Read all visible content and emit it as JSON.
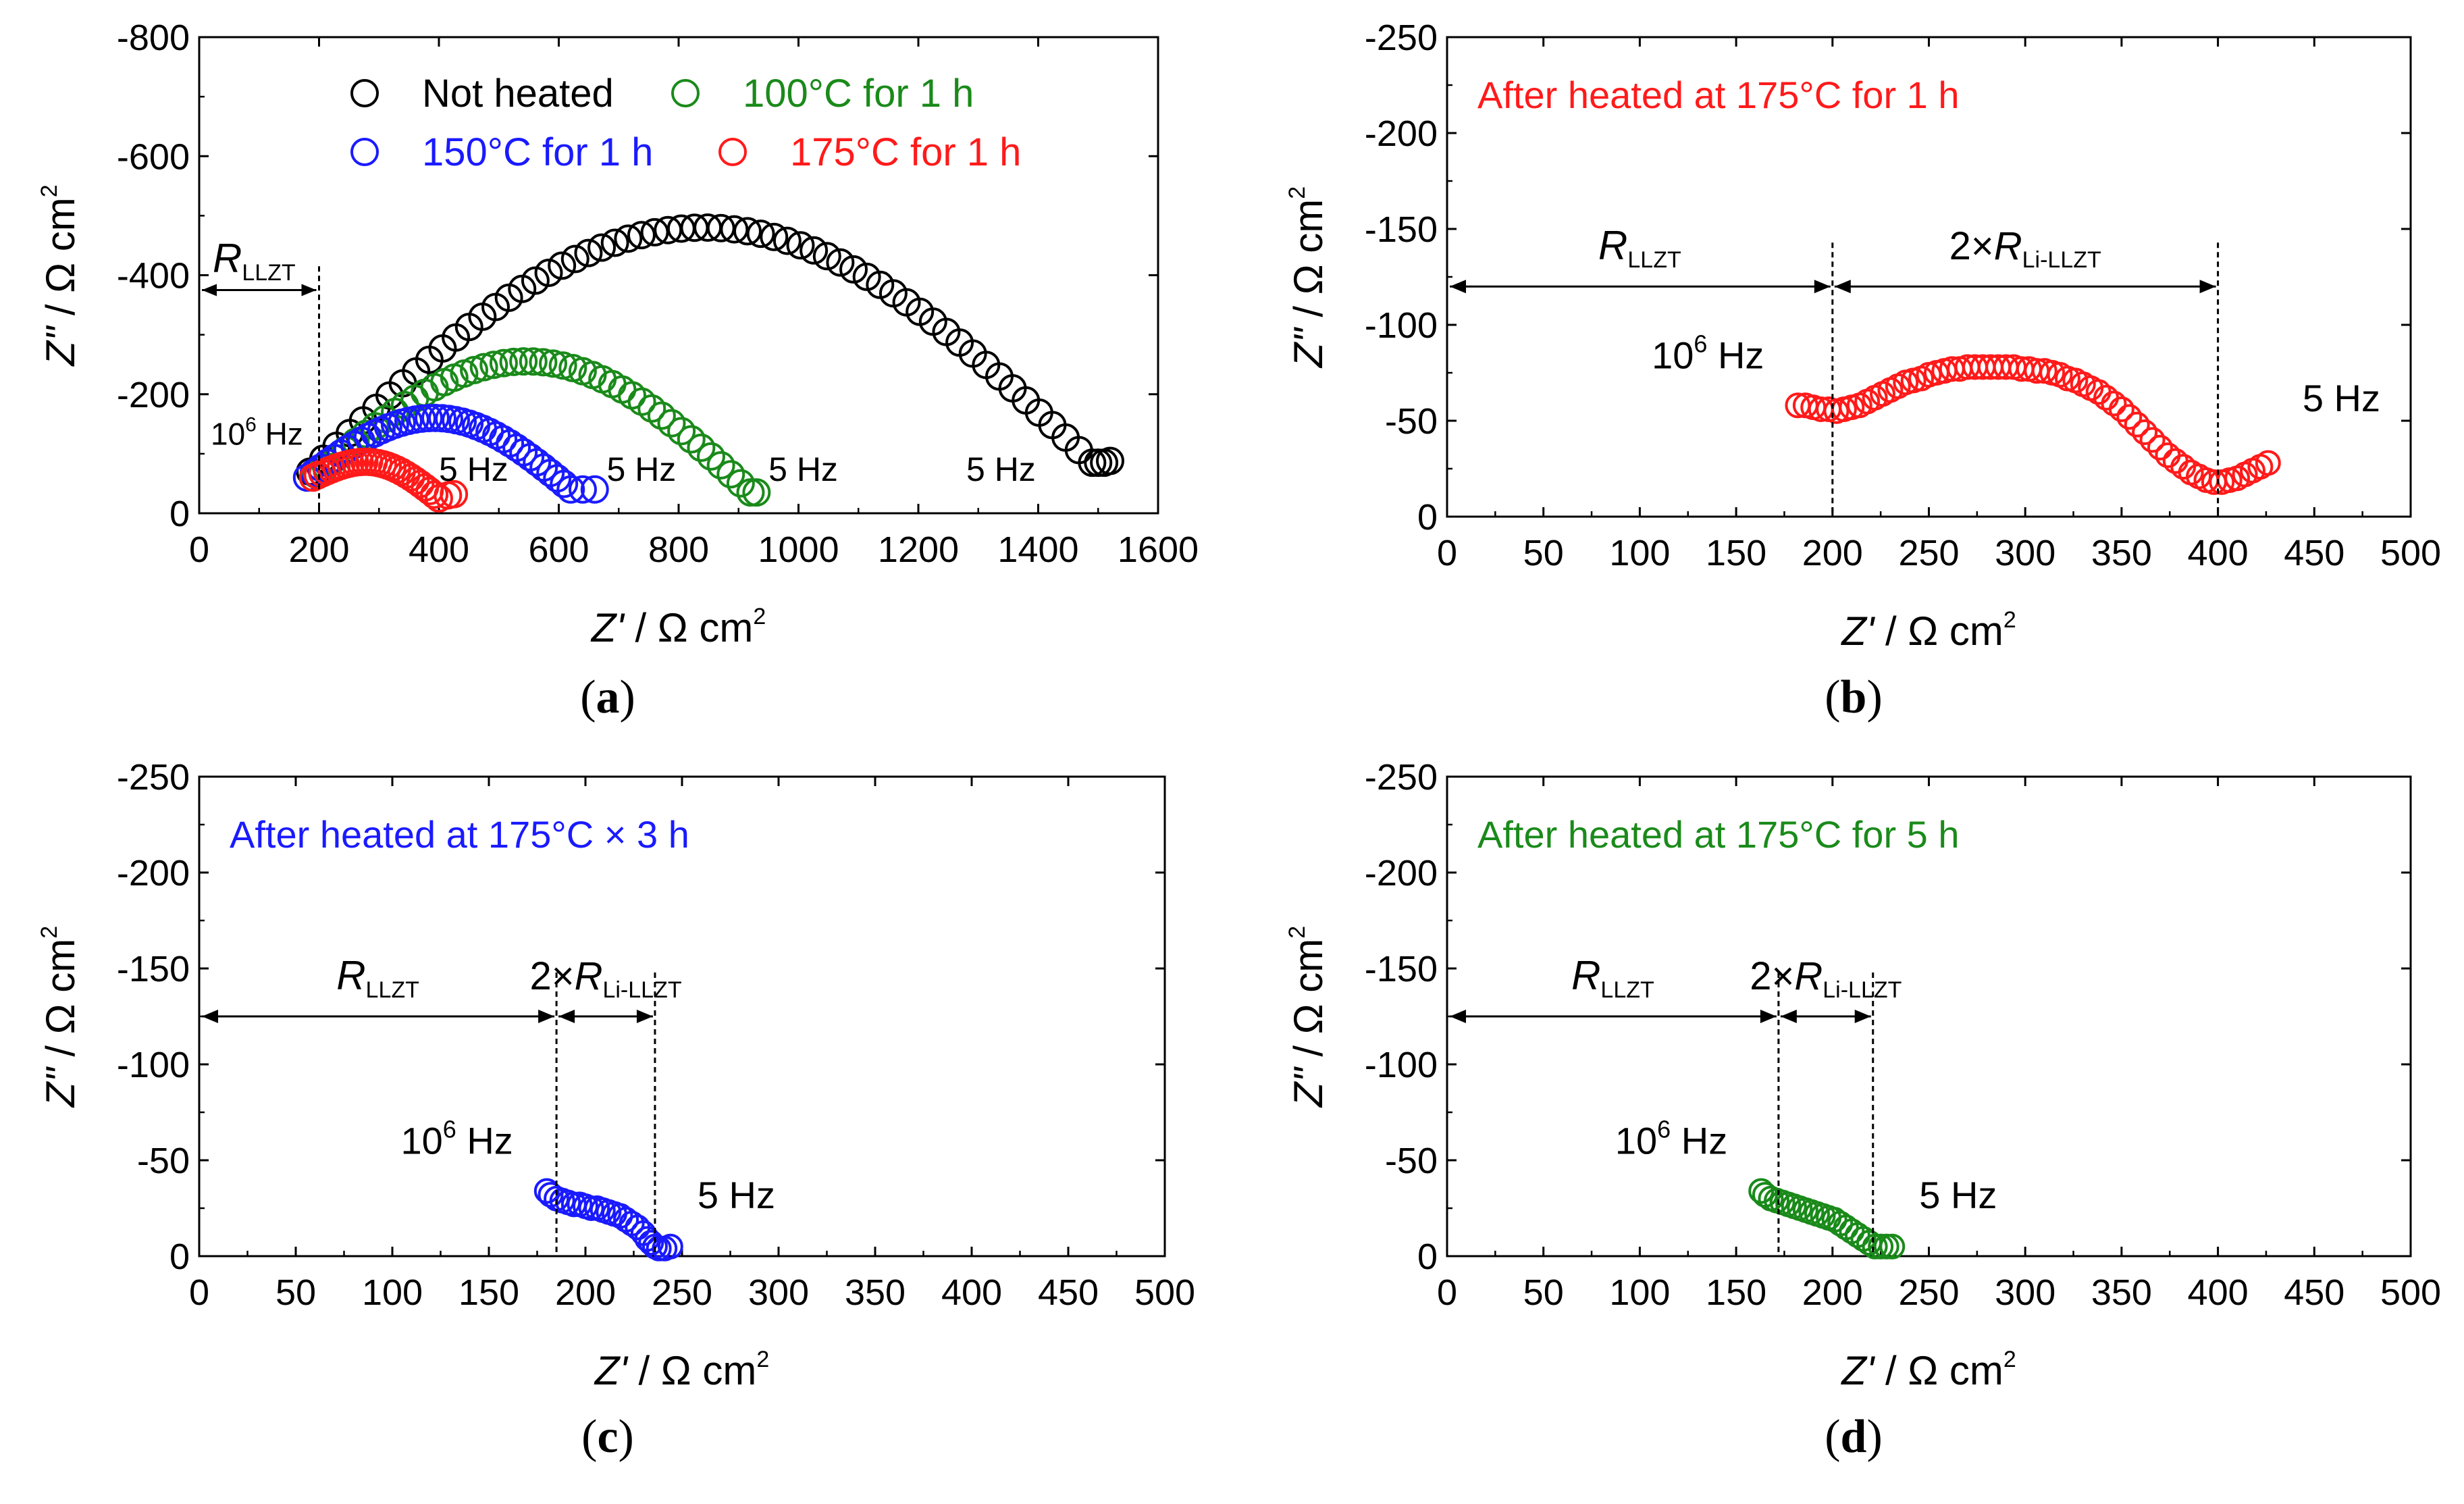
{
  "chart_data": [
    {
      "id": "a",
      "type": "scatter",
      "caption": "a",
      "xlabel_main": "Z'",
      "xlabel_unit": " / Ω cm",
      "xlabel_exp": "2",
      "ylabel_main": "Z\"",
      "ylabel_unit": " / Ω cm",
      "ylabel_exp": "2",
      "xlim": [
        0,
        1600
      ],
      "ylim": [
        0,
        -800
      ],
      "xticks": [
        "0",
        "200",
        "400",
        "600",
        "800",
        "1000",
        "1200",
        "1400",
        "1600"
      ],
      "yticks": [
        "0",
        "-200",
        "-400",
        "-600",
        "-800"
      ],
      "legend": {
        "placement": "top",
        "entries": [
          {
            "label": "Not heated",
            "color": "#000000",
            "text_color": "#000000"
          },
          {
            "label": "100°C for 1 h",
            "color": "#1a8a1a",
            "text_color": "#1a8a1a"
          },
          {
            "label": "150°C for 1 h",
            "color": "#1a1aff",
            "text_color": "#1a1aff"
          },
          {
            "label": "175°C for 1 h",
            "color": "#ff1a1a",
            "text_color": "#ff1a1a"
          }
        ]
      },
      "series": [
        {
          "name": "Not heated",
          "color": "#000000",
          "shape": "arc",
          "start": [
            185,
            -70
          ],
          "end": [
            1490,
            -85
          ],
          "peak": -480,
          "n": 60,
          "tail": [
            [
              1500,
              -85
            ],
            [
              1510,
              -85
            ],
            [
              1520,
              -88
            ]
          ]
        },
        {
          "name": "100°C for 1 h",
          "color": "#1a8a1a",
          "shape": "arc",
          "start": [
            195,
            -65
          ],
          "end": [
            920,
            -35
          ],
          "peak": -255,
          "n": 45,
          "tail": [
            [
              930,
              -35
            ]
          ]
        },
        {
          "name": "150°C for 1 h",
          "color": "#1a1aff",
          "shape": "arc",
          "start": [
            180,
            -60
          ],
          "end": [
            620,
            -40
          ],
          "peak": -160,
          "n": 40,
          "tail": [
            [
              640,
              -40
            ],
            [
              660,
              -40
            ]
          ]
        },
        {
          "name": "175°C for 1 h",
          "color": "#ff1a1a",
          "shape": "arc",
          "start": [
            190,
            -60
          ],
          "end": [
            400,
            -25
          ],
          "peak": -85,
          "n": 28,
          "tail": [
            [
              415,
              -30
            ],
            [
              425,
              -32
            ]
          ]
        }
      ],
      "annotations": {
        "r_label": "R",
        "r_sub": "LLZT",
        "start_freq_base": "10",
        "start_freq_exp": "6",
        "start_freq_unit": " Hz",
        "end_freq": "5 Hz",
        "end_freq_labels": [
          [
            400,
            -75
          ],
          [
            680,
            -75
          ],
          [
            950,
            -75
          ],
          [
            1280,
            -75
          ]
        ]
      }
    },
    {
      "id": "b",
      "type": "scatter",
      "caption": "b",
      "title": "After heated at 175°C for 1 h",
      "title_color": "#ff1a1a",
      "xlabel_main": "Z'",
      "xlabel_unit": " / Ω cm",
      "xlabel_exp": "2",
      "ylabel_main": "Z\"",
      "ylabel_unit": " / Ω cm",
      "ylabel_exp": "2",
      "xlim": [
        0,
        500
      ],
      "ylim": [
        0,
        -250
      ],
      "xticks": [
        "0",
        "50",
        "100",
        "150",
        "200",
        "250",
        "300",
        "350",
        "400",
        "450",
        "500"
      ],
      "yticks": [
        "0",
        "-50",
        "-100",
        "-150",
        "-200",
        "-250"
      ],
      "series": [
        {
          "name": "175°C for 1 h",
          "color": "#ff1a1a",
          "shape": "nyquist",
          "x0": 182,
          "x1": 428,
          "points": [
            [
              182,
              -58
            ],
            [
              186,
              -58
            ],
            [
              190,
              -57
            ],
            [
              194,
              -56
            ],
            [
              198,
              -56
            ],
            [
              202,
              -55
            ],
            [
              206,
              -56
            ],
            [
              210,
              -57
            ],
            [
              214,
              -58
            ],
            [
              218,
              -60
            ],
            [
              222,
              -62
            ],
            [
              226,
              -64
            ],
            [
              230,
              -66
            ],
            [
              234,
              -68
            ],
            [
              238,
              -70
            ],
            [
              242,
              -71
            ],
            [
              246,
              -72
            ],
            [
              250,
              -74
            ],
            [
              254,
              -75
            ],
            [
              258,
              -76
            ],
            [
              262,
              -77
            ],
            [
              266,
              -77
            ],
            [
              270,
              -78
            ],
            [
              274,
              -78
            ],
            [
              278,
              -78
            ],
            [
              282,
              -78
            ],
            [
              286,
              -78
            ],
            [
              290,
              -78
            ],
            [
              294,
              -78
            ],
            [
              298,
              -77
            ],
            [
              302,
              -77
            ],
            [
              306,
              -76
            ],
            [
              310,
              -76
            ],
            [
              314,
              -75
            ],
            [
              318,
              -74
            ],
            [
              322,
              -72
            ],
            [
              326,
              -71
            ],
            [
              330,
              -69
            ],
            [
              334,
              -67
            ],
            [
              338,
              -65
            ],
            [
              342,
              -62
            ],
            [
              346,
              -59
            ],
            [
              350,
              -56
            ],
            [
              354,
              -52
            ],
            [
              358,
              -48
            ],
            [
              362,
              -44
            ],
            [
              366,
              -40
            ],
            [
              370,
              -36
            ],
            [
              374,
              -32
            ],
            [
              378,
              -29
            ],
            [
              382,
              -26
            ],
            [
              386,
              -23
            ],
            [
              390,
              -21
            ],
            [
              394,
              -19
            ],
            [
              398,
              -18
            ],
            [
              402,
              -18
            ],
            [
              406,
              -19
            ],
            [
              410,
              -20
            ],
            [
              414,
              -22
            ],
            [
              418,
              -24
            ],
            [
              422,
              -26
            ],
            [
              426,
              -28
            ]
          ]
        }
      ],
      "annotations": {
        "r_label": "R",
        "r_sub": "LLZT",
        "r2_label_pre": "2×",
        "r2_label": "R",
        "r2_sub": "Li-LLZT",
        "dashed_x": [
          200,
          400
        ],
        "arrow_y": -120,
        "start_freq_base": "10",
        "start_freq_exp": "6",
        "start_freq_unit": " Hz",
        "end_freq": "5 Hz"
      }
    },
    {
      "id": "c",
      "type": "scatter",
      "caption": "c",
      "title": "After heated at 175°C × 3 h",
      "title_color": "#1a1aff",
      "xlabel_main": "Z'",
      "xlabel_unit": " / Ω cm",
      "xlabel_exp": "2",
      "ylabel_main": "Z\"",
      "ylabel_unit": " / Ω cm",
      "ylabel_exp": "2",
      "xlim": [
        0,
        500
      ],
      "ylim": [
        0,
        -250
      ],
      "xticks": [
        "0",
        "50",
        "100",
        "150",
        "200",
        "250",
        "300",
        "350",
        "400",
        "450",
        "500"
      ],
      "yticks": [
        "0",
        "-50",
        "-100",
        "-150",
        "-200",
        "-250"
      ],
      "series": [
        {
          "name": "175°C × 3 h",
          "color": "#1a1aff",
          "shape": "nyquist",
          "points": [
            [
              180,
              -34
            ],
            [
              182,
              -32
            ],
            [
              185,
              -30
            ],
            [
              188,
              -29
            ],
            [
              191,
              -28
            ],
            [
              194,
              -27
            ],
            [
              197,
              -27
            ],
            [
              200,
              -26
            ],
            [
              203,
              -25
            ],
            [
              206,
              -25
            ],
            [
              209,
              -24
            ],
            [
              212,
              -23
            ],
            [
              215,
              -22
            ],
            [
              218,
              -21
            ],
            [
              221,
              -19
            ],
            [
              224,
              -17
            ],
            [
              227,
              -15
            ],
            [
              230,
              -12
            ],
            [
              232,
              -9
            ],
            [
              234,
              -7
            ],
            [
              236,
              -5
            ],
            [
              238,
              -4
            ],
            [
              241,
              -4
            ],
            [
              244,
              -5
            ]
          ]
        }
      ],
      "annotations": {
        "r_label": "R",
        "r_sub": "LLZT",
        "r2_label_pre": "2×",
        "r2_label": "R",
        "r2_sub": "Li-LLZT",
        "dashed_x": [
          185,
          236
        ],
        "arrow_y": -125,
        "start_freq_base": "10",
        "start_freq_exp": "6",
        "start_freq_unit": " Hz",
        "end_freq": "5 Hz"
      }
    },
    {
      "id": "d",
      "type": "scatter",
      "caption": "d",
      "title": "After heated at 175°C for 5 h",
      "title_color": "#1a8a1a",
      "xlabel_main": "Z'",
      "xlabel_unit": " / Ω cm",
      "xlabel_exp": "2",
      "ylabel_main": "Z\"",
      "ylabel_unit": " / Ω cm",
      "ylabel_exp": "2",
      "xlim": [
        0,
        500
      ],
      "ylim": [
        0,
        -250
      ],
      "xticks": [
        "0",
        "50",
        "100",
        "150",
        "200",
        "250",
        "300",
        "350",
        "400",
        "450",
        "500"
      ],
      "yticks": [
        "0",
        "-50",
        "-100",
        "-150",
        "-200",
        "-250"
      ],
      "series": [
        {
          "name": "175°C for 5 h",
          "color": "#1a8a1a",
          "shape": "nyquist",
          "points": [
            [
              163,
              -34
            ],
            [
              165,
              -32
            ],
            [
              168,
              -30
            ],
            [
              171,
              -29
            ],
            [
              174,
              -28
            ],
            [
              177,
              -27
            ],
            [
              180,
              -26
            ],
            [
              183,
              -25
            ],
            [
              186,
              -24
            ],
            [
              189,
              -23
            ],
            [
              192,
              -22
            ],
            [
              195,
              -21
            ],
            [
              198,
              -20
            ],
            [
              201,
              -19
            ],
            [
              204,
              -17
            ],
            [
              207,
              -15
            ],
            [
              210,
              -13
            ],
            [
              213,
              -11
            ],
            [
              216,
              -9
            ],
            [
              219,
              -7
            ],
            [
              222,
              -5
            ],
            [
              225,
              -5
            ],
            [
              228,
              -5
            ],
            [
              231,
              -5
            ]
          ]
        }
      ],
      "annotations": {
        "r_label": "R",
        "r_sub": "LLZT",
        "r2_label_pre": "2×",
        "r2_label": "R",
        "r2_sub": "Li-LLZT",
        "dashed_x": [
          172,
          221
        ],
        "arrow_y": -125,
        "start_freq_base": "10",
        "start_freq_exp": "6",
        "start_freq_unit": " Hz",
        "end_freq": "5 Hz"
      }
    }
  ]
}
